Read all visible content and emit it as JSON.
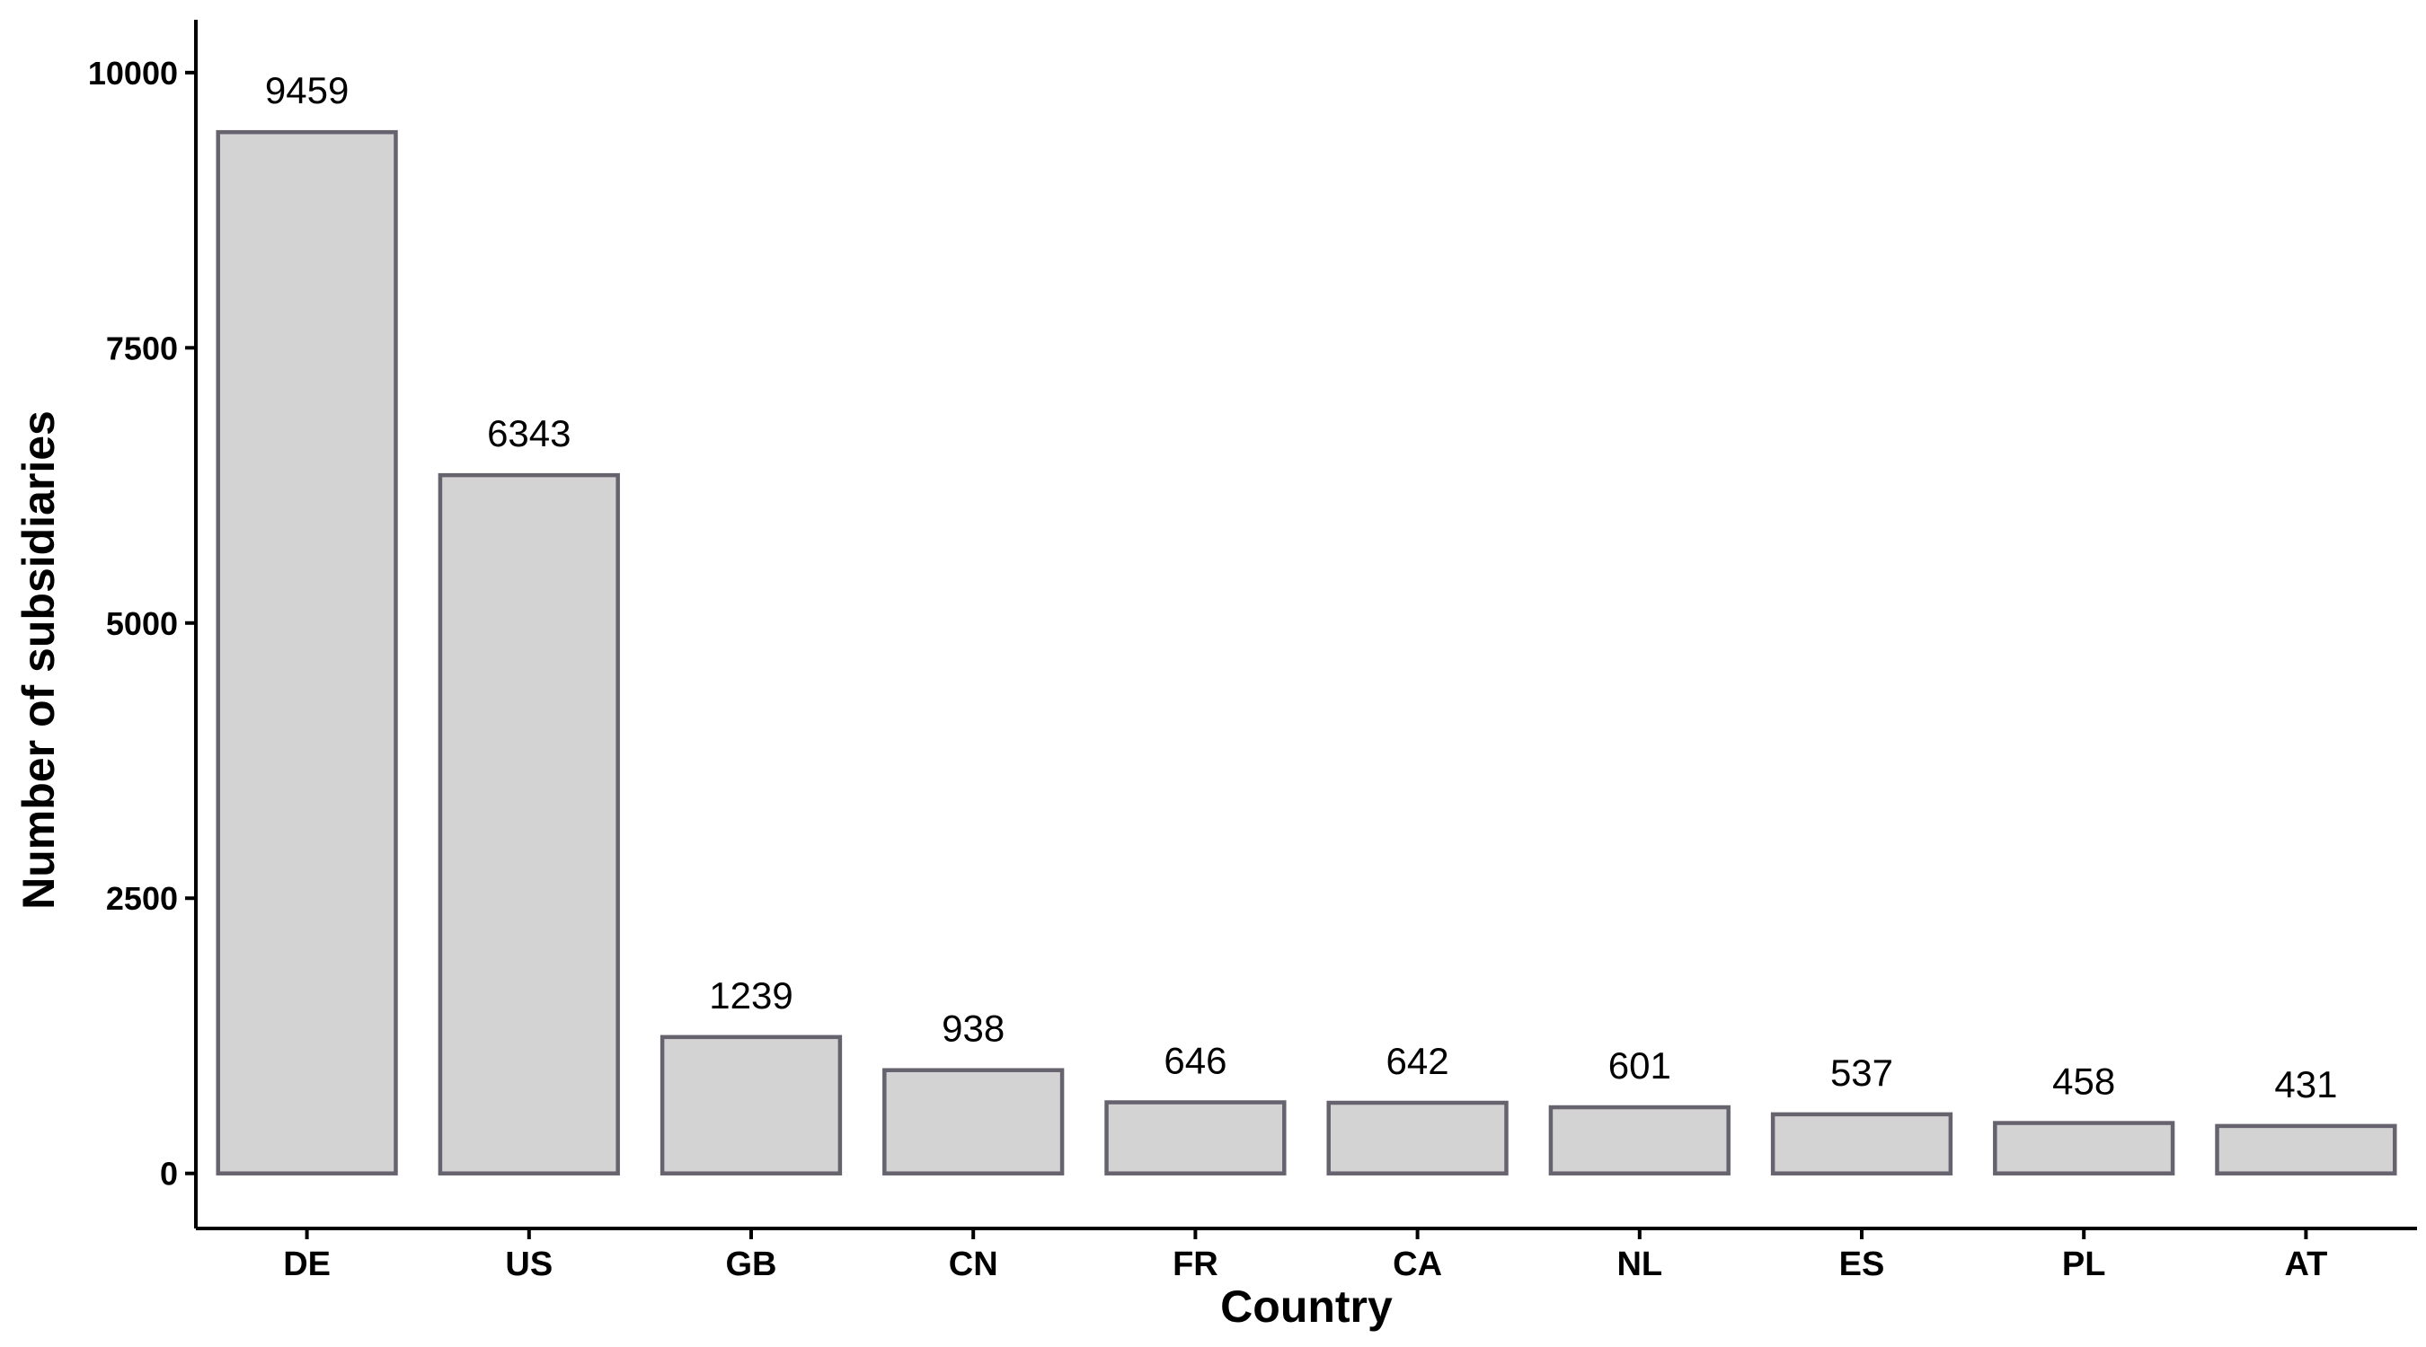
{
  "chart_data": {
    "type": "bar",
    "title": "",
    "xlabel": "Country",
    "ylabel": "Number of subsidiaries",
    "categories": [
      "DE",
      "US",
      "GB",
      "CN",
      "FR",
      "CA",
      "NL",
      "ES",
      "PL",
      "AT"
    ],
    "values": [
      9459,
      6343,
      1239,
      938,
      646,
      642,
      601,
      537,
      458,
      431
    ],
    "data_labels": [
      "9459",
      "6343",
      "1239",
      "938",
      "646",
      "642",
      "601",
      "537",
      "458",
      "431"
    ],
    "yticks": [
      0,
      2500,
      5000,
      7500,
      10000
    ],
    "ytick_labels": [
      "0",
      "2500",
      "5000",
      "7500",
      "10000"
    ],
    "ylim": [
      -500,
      10480
    ],
    "grid": false,
    "legend": "none",
    "colors": {
      "bar_fill": "#d3d3d3",
      "bar_stroke": "#66636f",
      "axis": "#000000"
    }
  }
}
